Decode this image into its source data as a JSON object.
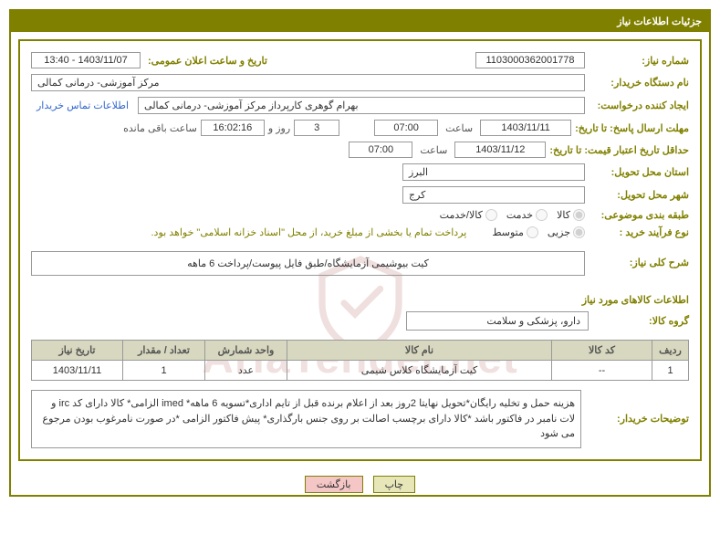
{
  "header": {
    "title": "جزئیات اطلاعات نیاز"
  },
  "fields": {
    "need_no_label": "شماره نیاز:",
    "need_no": "1103000362001778",
    "announce_label": "تاریخ و ساعت اعلان عمومی:",
    "announce_value": "1403/11/07 - 13:40",
    "buyer_org_label": "نام دستگاه خریدار:",
    "buyer_org": "مرکز آموزشی- درمانی کمالی",
    "requester_label": "ایجاد کننده درخواست:",
    "requester": "بهرام گوهری کارپرداز مرکز آموزشی- درمانی کمالی",
    "contact_link": "اطلاعات تماس خریدار",
    "deadline_reply_label": "مهلت ارسال پاسخ: تا تاریخ:",
    "deadline_reply_date": "1403/11/11",
    "hour_label": "ساعت",
    "deadline_reply_hour": "07:00",
    "days_val": "3",
    "days_suffix": "روز و",
    "countdown": "16:02:16",
    "remain_label": "ساعت باقی مانده",
    "price_valid_label": "حداقل تاریخ اعتبار قیمت: تا تاریخ:",
    "price_valid_date": "1403/11/12",
    "price_valid_hour": "07:00",
    "province_label": "استان محل تحویل:",
    "province": "البرز",
    "city_label": "شهر محل تحویل:",
    "city": "کرج",
    "topic_class_label": "طبقه بندی موضوعی:",
    "buy_process_label": "نوع فرآیند خرید :",
    "pay_note": "پرداخت تمام یا بخشی از مبلغ خرید، از محل \"اسناد خزانه اسلامی\" خواهد بود."
  },
  "radios": {
    "topic": [
      {
        "label": "کالا",
        "checked": true
      },
      {
        "label": "خدمت",
        "checked": false
      },
      {
        "label": "کالا/خدمت",
        "checked": false
      }
    ],
    "process": [
      {
        "label": "جزیی",
        "checked": true
      },
      {
        "label": "متوسط",
        "checked": false
      }
    ]
  },
  "desc": {
    "heading": "شرح کلی نیاز:",
    "text": "کیت بیوشیمی آزمایشگاه/طبق فایل پیوست/پرداخت 6 ماهه"
  },
  "goods": {
    "heading": "اطلاعات کالاهای مورد نیاز",
    "group_label": "گروه کالا:",
    "group_value": "دارو، پزشکی و سلامت"
  },
  "table": {
    "headers": [
      "ردیف",
      "کد کالا",
      "نام کالا",
      "واحد شمارش",
      "تعداد / مقدار",
      "تاریخ نیاز"
    ],
    "rows": [
      [
        "1",
        "--",
        "کیت آزمایشگاه کلاس شیمی",
        "عدد",
        "1",
        "1403/11/11"
      ]
    ],
    "col_widths": [
      "40px",
      "110px",
      "auto",
      "90px",
      "90px",
      "100px"
    ]
  },
  "buyer_notes": {
    "label": "توضیحات خریدار:",
    "text": "هزینه حمل و تخلیه رایگان*تحویل نهایتا 2روز بعد از اعلام برنده قبل از تایم اداری*تسویه 6 ماهه* imed الزامی* کالا دارای کد irc و لات نامبر در فاکتور باشد *کالا دارای برچسب اصالت بر روی جنس بارگذاری* پیش فاکتور الزامی *در صورت نامرغوب بودن مرجوع می شود"
  },
  "buttons": {
    "print": "چاپ",
    "back": "بازگشت"
  },
  "watermark": {
    "text": "AriaTender.net"
  },
  "colors": {
    "olive": "#808000",
    "header_bg": "#d8d8c0",
    "btn_primary": "#e6e6b8",
    "btn_secondary": "#f5c6c6"
  }
}
